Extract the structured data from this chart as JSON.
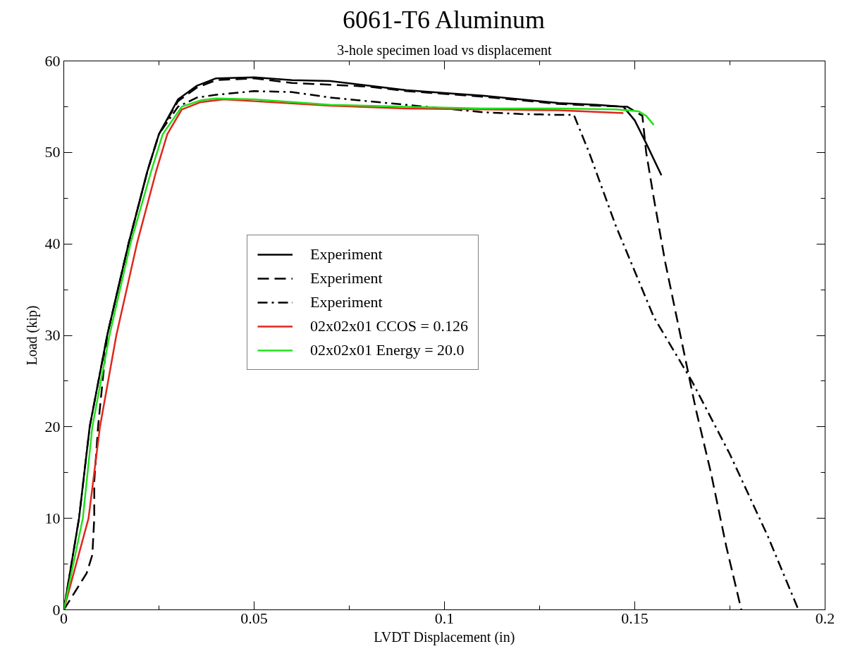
{
  "chart_data": {
    "type": "line",
    "title": "6061-T6 Aluminum",
    "subtitle": "3-hole specimen load vs displacement",
    "xlabel": "LVDT Displacement (in)",
    "ylabel": "Load (kip)",
    "xlim": [
      0,
      0.2
    ],
    "xticks": [
      0,
      0.05,
      0.1,
      0.15,
      0.2
    ],
    "ylim": [
      0,
      60
    ],
    "yticks": [
      0,
      10,
      20,
      30,
      40,
      50,
      60
    ],
    "grid": false,
    "legend": "center",
    "marker": "none",
    "series": [
      {
        "name": "Experiment",
        "color": "#000000",
        "line_style": "solid",
        "x": [
          0,
          0.004,
          0.0068,
          0.0114,
          0.017,
          0.022,
          0.025,
          0.03,
          0.035,
          0.04,
          0.05,
          0.06,
          0.07,
          0.08,
          0.09,
          0.1,
          0.11,
          0.12,
          0.13,
          0.14,
          0.147,
          0.15,
          0.153,
          0.157
        ],
        "values": [
          0,
          10,
          20,
          30,
          40,
          48,
          52,
          55.8,
          57.3,
          58.1,
          58.2,
          57.9,
          57.8,
          57.3,
          56.8,
          56.5,
          56.2,
          55.8,
          55.4,
          55.2,
          55,
          53.5,
          51,
          47.5
        ]
      },
      {
        "name": "Experiment",
        "color": "#000000",
        "line_style": "dashed",
        "x": [
          0,
          0.003,
          0.006,
          0.0075,
          0.008,
          0.008,
          0.009,
          0.0114,
          0.017,
          0.022,
          0.025,
          0.03,
          0.035,
          0.04,
          0.05,
          0.06,
          0.07,
          0.08,
          0.09,
          0.1,
          0.11,
          0.12,
          0.13,
          0.14,
          0.148,
          0.152,
          0.153,
          0.155,
          0.158,
          0.162,
          0.166,
          0.17,
          0.174,
          0.178
        ],
        "values": [
          0,
          2,
          4,
          6,
          10,
          14,
          20,
          30,
          40,
          48,
          52,
          55.6,
          57.1,
          57.9,
          58.1,
          57.6,
          57.4,
          57.2,
          56.7,
          56.4,
          56.1,
          55.7,
          55.3,
          55.1,
          55,
          54,
          50,
          45,
          38,
          30,
          22,
          15,
          7,
          0
        ]
      },
      {
        "name": "Experiment",
        "color": "#000000",
        "line_style": "dashdot",
        "x": [
          0,
          0.004,
          0.0068,
          0.0114,
          0.017,
          0.022,
          0.025,
          0.03,
          0.035,
          0.04,
          0.05,
          0.06,
          0.07,
          0.08,
          0.09,
          0.1,
          0.11,
          0.12,
          0.13,
          0.134,
          0.138,
          0.145,
          0.155,
          0.165,
          0.175,
          0.185,
          0.193
        ],
        "values": [
          0,
          10,
          20,
          30,
          40,
          48,
          52,
          55,
          56,
          56.3,
          56.7,
          56.6,
          56,
          55.6,
          55.2,
          54.8,
          54.4,
          54.2,
          54.1,
          54.1,
          50,
          42,
          32,
          25,
          17,
          8,
          0
        ]
      },
      {
        "name": "02x02x01 CCOS = 0.126",
        "color": "#e0261b",
        "line_style": "solid",
        "x": [
          0,
          0.0065,
          0.0095,
          0.0138,
          0.0192,
          0.0243,
          0.0272,
          0.031,
          0.036,
          0.042,
          0.05,
          0.07,
          0.09,
          0.11,
          0.13,
          0.147
        ],
        "values": [
          0,
          10,
          20,
          30,
          40,
          48,
          52,
          54.7,
          55.5,
          55.8,
          55.6,
          55.1,
          54.8,
          54.7,
          54.6,
          54.3
        ]
      },
      {
        "name": "02x02x01 Energy = 20.0",
        "color": "#22e01b",
        "line_style": "solid",
        "x": [
          0,
          0.005,
          0.0075,
          0.012,
          0.0175,
          0.023,
          0.026,
          0.031,
          0.036,
          0.04,
          0.05,
          0.07,
          0.09,
          0.11,
          0.13,
          0.145,
          0.151,
          0.153,
          0.155
        ],
        "values": [
          0,
          10,
          20,
          30,
          40,
          48,
          52,
          55,
          55.7,
          55.9,
          55.8,
          55.2,
          55,
          54.8,
          54.8,
          54.7,
          54.5,
          54,
          53
        ]
      }
    ]
  }
}
